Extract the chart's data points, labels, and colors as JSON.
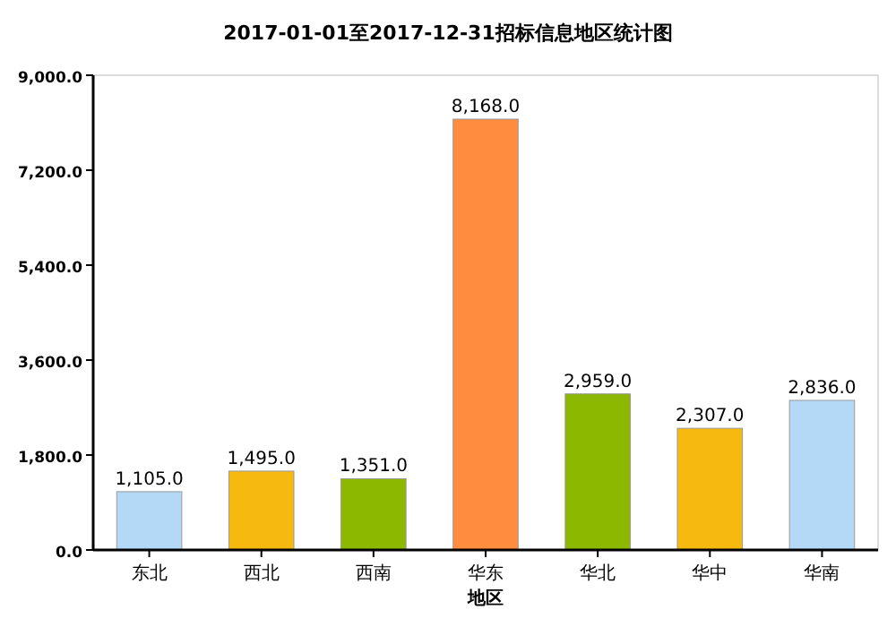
{
  "chart_data": {
    "type": "bar",
    "title": "2017-01-01至2017-12-31招标信息地区统计图",
    "xlabel": "地区",
    "categories": [
      "东北",
      "西北",
      "西南",
      "华东",
      "华北",
      "华中",
      "华南"
    ],
    "values": [
      1105.0,
      1495.0,
      1351.0,
      8168.0,
      2959.0,
      2307.0,
      2836.0
    ],
    "colors": [
      "#b3d9f7",
      "#f5b90f",
      "#8cb800",
      "#ff8c3f",
      "#8cb800",
      "#f5b90f",
      "#b3d9f7"
    ],
    "value_labels": [
      "1,105.0",
      "1,495.0",
      "1,351.0",
      "8,168.0",
      "2,959.0",
      "2,307.0",
      "2,836.0"
    ],
    "ylim": [
      0,
      9000
    ],
    "yticks": [
      {
        "value": 0,
        "label": "0.0"
      },
      {
        "value": 1800,
        "label": "1,800.0"
      },
      {
        "value": 3600,
        "label": "3,600.0"
      },
      {
        "value": 5400,
        "label": "5,400.0"
      },
      {
        "value": 7200,
        "label": "7,200.0"
      },
      {
        "value": 9000,
        "label": "9,000.0"
      }
    ],
    "grid": false
  }
}
